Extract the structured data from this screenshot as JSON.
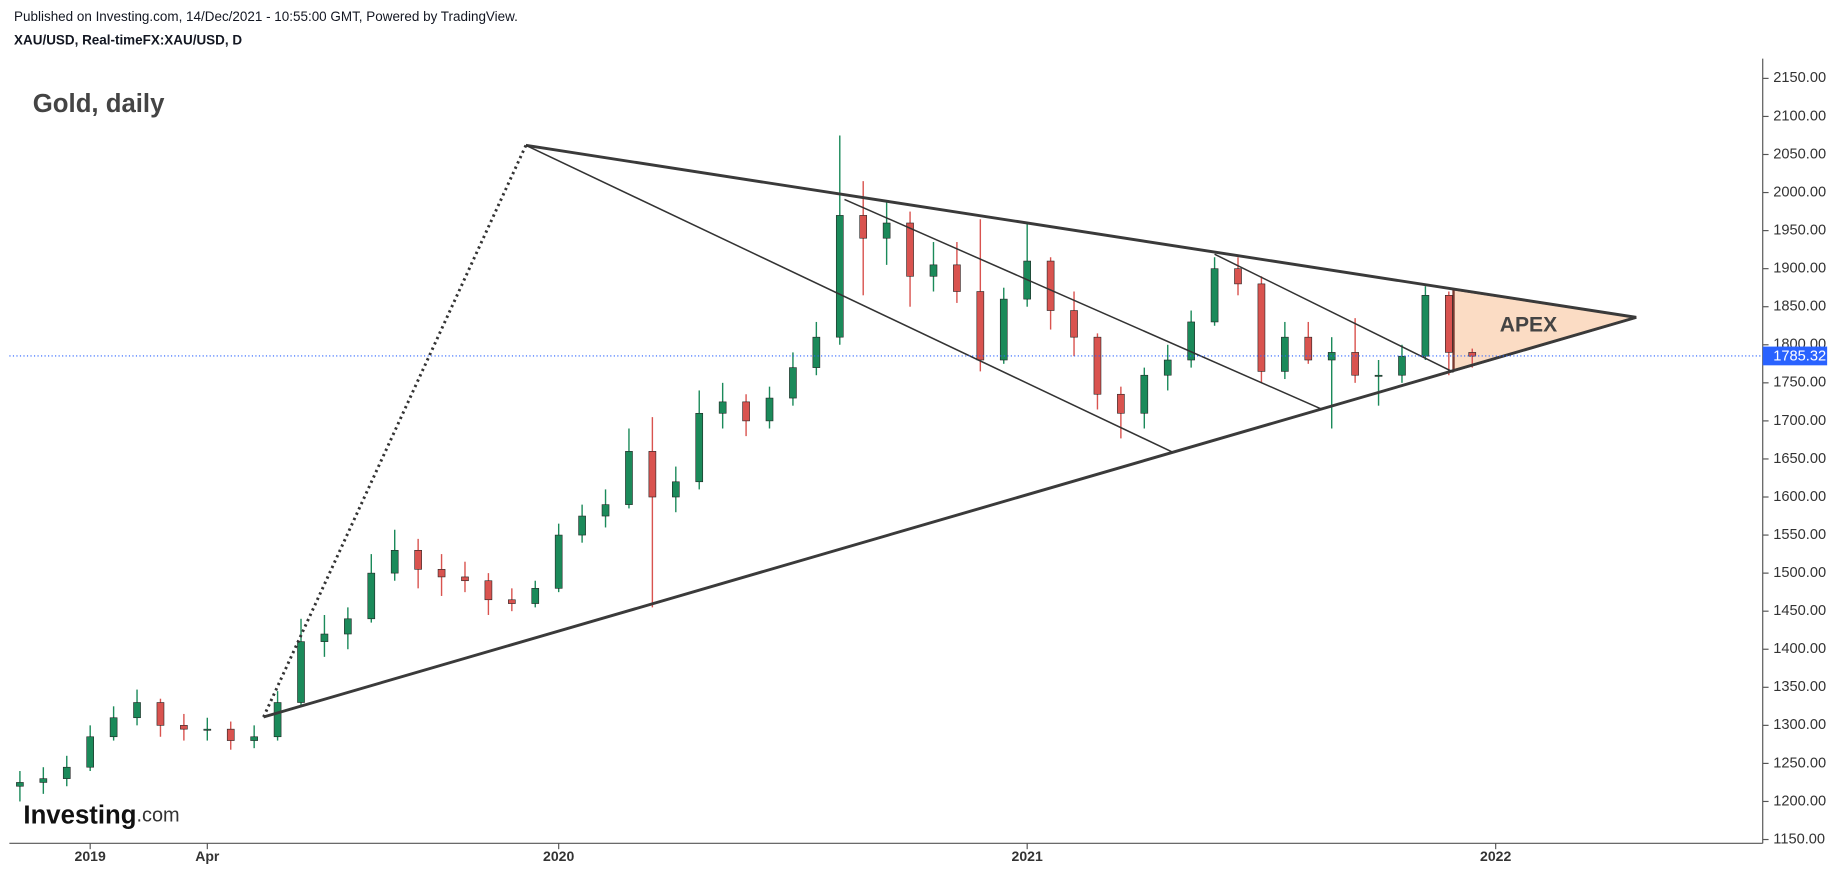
{
  "header": {
    "published": "Published on Investing.com, 14/Dec/2021 - 10:55:00 GMT, Powered by TradingView.",
    "symbol": "XAU/USD, Real-timeFX:XAU/USD, D"
  },
  "logo": {
    "name": "Investing",
    "suffix": ".com"
  },
  "chart_data": {
    "type": "candlestick",
    "title": "Gold, daily",
    "up_color": "#1b8a5a",
    "down_color": "#d9534f",
    "x": [
      2018.85,
      2018.9,
      2018.95,
      2019.0,
      2019.05,
      2019.1,
      2019.15,
      2019.2,
      2019.25,
      2019.3,
      2019.35,
      2019.4,
      2019.45,
      2019.5,
      2019.55,
      2019.6,
      2019.65,
      2019.7,
      2019.75,
      2019.8,
      2019.85,
      2019.9,
      2019.95,
      2020.0,
      2020.05,
      2020.1,
      2020.15,
      2020.2,
      2020.25,
      2020.3,
      2020.35,
      2020.4,
      2020.45,
      2020.5,
      2020.55,
      2020.6,
      2020.65,
      2020.7,
      2020.75,
      2020.8,
      2020.85,
      2020.9,
      2020.95,
      2021.0,
      2021.05,
      2021.1,
      2021.15,
      2021.2,
      2021.25,
      2021.3,
      2021.35,
      2021.4,
      2021.45,
      2021.5,
      2021.55,
      2021.6,
      2021.65,
      2021.7,
      2021.75,
      2021.8,
      2021.85,
      2021.9,
      2021.95
    ],
    "open": [
      1220,
      1225,
      1230,
      1245,
      1285,
      1310,
      1330,
      1300,
      1295,
      1295,
      1280,
      1285,
      1330,
      1410,
      1420,
      1440,
      1500,
      1530,
      1505,
      1495,
      1490,
      1465,
      1460,
      1480,
      1550,
      1575,
      1590,
      1660,
      1600,
      1620,
      1710,
      1725,
      1700,
      1730,
      1770,
      1810,
      1970,
      1940,
      1960,
      1890,
      1905,
      1870,
      1780,
      1860,
      1910,
      1845,
      1810,
      1735,
      1710,
      1760,
      1780,
      1830,
      1900,
      1880,
      1765,
      1810,
      1780,
      1790,
      1760,
      1760,
      1785,
      1865,
      1790
    ],
    "high": [
      1240,
      1245,
      1260,
      1300,
      1325,
      1347,
      1335,
      1315,
      1310,
      1305,
      1300,
      1345,
      1440,
      1445,
      1455,
      1525,
      1557,
      1545,
      1525,
      1515,
      1500,
      1480,
      1490,
      1565,
      1590,
      1610,
      1690,
      1705,
      1640,
      1740,
      1750,
      1735,
      1745,
      1790,
      1830,
      2075,
      2015,
      1990,
      1975,
      1935,
      1935,
      1965,
      1875,
      1960,
      1915,
      1870,
      1815,
      1745,
      1770,
      1800,
      1845,
      1915,
      1915,
      1890,
      1830,
      1830,
      1810,
      1835,
      1780,
      1800,
      1877,
      1870,
      1795
    ],
    "low": [
      1200,
      1210,
      1220,
      1240,
      1280,
      1300,
      1285,
      1280,
      1280,
      1268,
      1270,
      1280,
      1325,
      1390,
      1400,
      1435,
      1490,
      1480,
      1470,
      1475,
      1445,
      1450,
      1455,
      1475,
      1540,
      1560,
      1585,
      1455,
      1580,
      1610,
      1690,
      1680,
      1690,
      1720,
      1760,
      1800,
      1865,
      1905,
      1850,
      1870,
      1855,
      1765,
      1775,
      1850,
      1820,
      1785,
      1715,
      1677,
      1690,
      1740,
      1770,
      1825,
      1865,
      1750,
      1755,
      1775,
      1690,
      1750,
      1720,
      1750,
      1780,
      1760,
      1770
    ],
    "close": [
      1225,
      1230,
      1245,
      1285,
      1310,
      1330,
      1300,
      1295,
      1295,
      1280,
      1285,
      1330,
      1410,
      1420,
      1440,
      1500,
      1530,
      1505,
      1495,
      1490,
      1465,
      1460,
      1480,
      1550,
      1575,
      1590,
      1660,
      1600,
      1620,
      1710,
      1725,
      1700,
      1730,
      1770,
      1810,
      1970,
      1940,
      1960,
      1890,
      1905,
      1870,
      1780,
      1860,
      1910,
      1845,
      1810,
      1735,
      1710,
      1760,
      1780,
      1830,
      1900,
      1880,
      1765,
      1810,
      1780,
      1790,
      1760,
      1760,
      1785,
      1865,
      1790,
      1785
    ],
    "xlim": [
      2018.8275,
      2022.57
    ],
    "xticks": [
      2019,
      {
        "value": 2019.25,
        "label": "Apr"
      },
      2020,
      2021,
      2022
    ],
    "ylim": [
      1145,
      2176
    ],
    "yticks": [
      {
        "value": 1150,
        "label": "1150.00"
      },
      {
        "value": 1200,
        "label": "1200.00"
      },
      {
        "value": 1250,
        "label": "1250.00"
      },
      {
        "value": 1300,
        "label": "1300.00"
      },
      {
        "value": 1350,
        "label": "1350.00"
      },
      {
        "value": 1400,
        "label": "1400.00"
      },
      {
        "value": 1450,
        "label": "1450.00"
      },
      {
        "value": 1500,
        "label": "1500.00"
      },
      {
        "value": 1550,
        "label": "1550.00"
      },
      {
        "value": 1600,
        "label": "1600.00"
      },
      {
        "value": 1650,
        "label": "1650.00"
      },
      {
        "value": 1700,
        "label": "1700.00"
      },
      {
        "value": 1750,
        "label": "1750.00"
      },
      {
        "value": 1800,
        "label": "1800.00"
      },
      {
        "value": 1850,
        "label": "1850.00"
      },
      {
        "value": 1900,
        "label": "1900.00"
      },
      {
        "value": 1950,
        "label": "1950.00"
      },
      {
        "value": 2000,
        "label": "2000.00"
      },
      {
        "value": 2050,
        "label": "2050.00"
      },
      {
        "value": 2100,
        "label": "2100.00"
      },
      {
        "value": 2150,
        "label": "2150.00"
      }
    ],
    "last_price": 1785.32,
    "last_price_color": "#2962ff",
    "trendlines": [
      {
        "x": [
          2019.37,
          2019.93
        ],
        "y": [
          1311,
          2062
        ],
        "style": "dotted",
        "width": 2.5,
        "color": "#333333"
      },
      {
        "x": [
          2019.93,
          2022.3
        ],
        "y": [
          2062,
          1836
        ],
        "style": "solid",
        "width": 2.5,
        "color": "#3a3a3a"
      },
      {
        "x": [
          2019.37,
          2022.3
        ],
        "y": [
          1311,
          1836
        ],
        "style": "solid",
        "width": 2.5,
        "color": "#3a3a3a"
      },
      {
        "x": [
          2019.93,
          2021.31
        ],
        "y": [
          2062,
          1659
        ],
        "style": "solid",
        "width": 1.3,
        "color": "#333333"
      },
      {
        "x": [
          2020.61,
          2021.63
        ],
        "y": [
          1991,
          1715
        ],
        "style": "solid",
        "width": 1.3,
        "color": "#333333"
      },
      {
        "x": [
          2021.4,
          2021.91
        ],
        "y": [
          1919,
          1764
        ],
        "style": "solid",
        "width": 1.3,
        "color": "#333333"
      }
    ],
    "apex": {
      "label": "APEX",
      "x": [
        2021.91,
        2022.3,
        2021.91
      ],
      "y": [
        1873,
        1836,
        1766
      ],
      "color": "#fbdcc4",
      "edge": "#7a3a30"
    }
  }
}
